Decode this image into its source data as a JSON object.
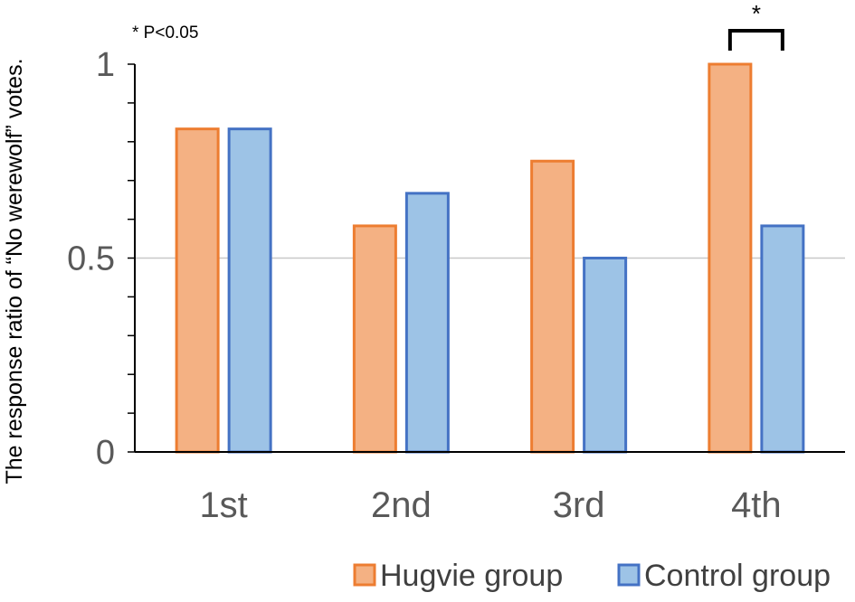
{
  "chart_data": {
    "type": "bar",
    "categories": [
      "1st",
      "2nd",
      "3rd",
      "4th"
    ],
    "series": [
      {
        "name": "Hugvie group",
        "values": [
          0.833,
          0.583,
          0.75,
          1.0
        ],
        "fill": "#f4b183",
        "stroke": "#ed7d31"
      },
      {
        "name": "Control group",
        "values": [
          0.833,
          0.667,
          0.5,
          0.583
        ],
        "fill": "#9dc3e6",
        "stroke": "#4472c4"
      }
    ],
    "ylabel": "The response ratio of  “No werewolf” votes.",
    "ylim": [
      0,
      1
    ],
    "yticks": [
      "0",
      "0.5",
      "1"
    ],
    "ytick_values": [
      0,
      0.5,
      1
    ],
    "minor_tick_step": 0.1,
    "gridlines": [
      0.5
    ],
    "legend_position": "bottom-right",
    "annotations": {
      "note": "* P<0.05",
      "significance": {
        "category": "4th",
        "label": "*"
      }
    }
  }
}
